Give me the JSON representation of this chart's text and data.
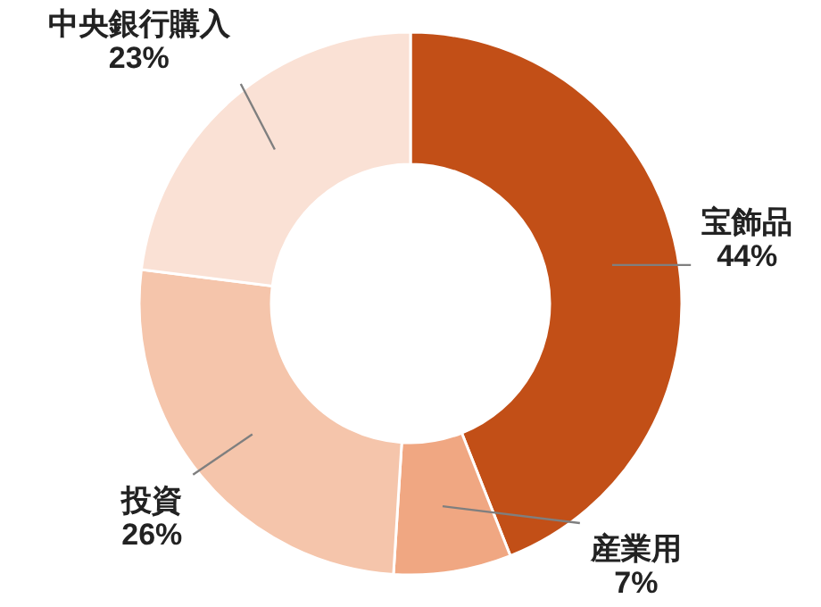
{
  "chart_data": {
    "type": "donut",
    "categories": [
      "宝飾品",
      "産業用",
      "投資",
      "中央銀行購入"
    ],
    "values": [
      44,
      7,
      26,
      23
    ],
    "value_labels": [
      "44%",
      "7%",
      "26%",
      "23%"
    ],
    "colors": [
      "#c24f17",
      "#f0a782",
      "#f5c5ab",
      "#fae1d5"
    ]
  }
}
